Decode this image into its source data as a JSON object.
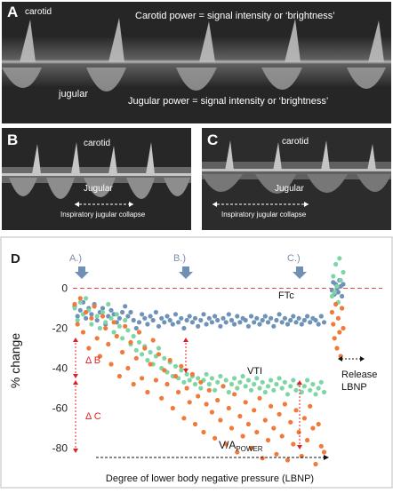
{
  "panel_a": {
    "letter": "A",
    "carotid": "carotid",
    "carotid_power": "Carotid power = signal intensity or ‘brightness’",
    "jugular": "jugular",
    "jugular_power": "Jugular power = signal intensity or ‘brightness’"
  },
  "panel_b": {
    "letter": "B",
    "carotid": "carotid",
    "jugular": "Jugular",
    "collapse": "Inspiratory jugular collapse"
  },
  "panel_c": {
    "letter": "C",
    "carotid": "carotid",
    "jugular": "Jugular",
    "collapse": "Inspiratory jugular collapse"
  },
  "chart_data": {
    "type": "scatter",
    "panel_letter": "D",
    "ylabel": "% change",
    "xlabel": "Degree of lower body negative pressure (LBNP)",
    "ylim": [
      -90,
      10
    ],
    "yticks": [
      0,
      -20,
      -40,
      -60,
      -80
    ],
    "markers": [
      "A.)",
      "B.)",
      "C.)"
    ],
    "series_labels": {
      "ftc": "FTc",
      "vti": "VTI",
      "va_main": "V/A",
      "va_sub": "POWER"
    },
    "delta_b": "Δ B",
    "delta_c": "Δ C",
    "release": [
      "Release",
      "LBNP"
    ],
    "colors": {
      "ftc": "#6f92b8",
      "vti": "#7ed6a5",
      "va": "#f07a3a",
      "zero": "#e84a4a",
      "annot": "#e02020",
      "marker": "#6f8fb5"
    },
    "series": [
      {
        "name": "FTc",
        "x": [
          1,
          2,
          3,
          4,
          5,
          6,
          7,
          8,
          9,
          10,
          11,
          12,
          13,
          14,
          15,
          16,
          17,
          18,
          19,
          20,
          21,
          22,
          23,
          24,
          25,
          26,
          27,
          28,
          29,
          30,
          31,
          32,
          33,
          34,
          35,
          36,
          37,
          38,
          39,
          40,
          41,
          42,
          43,
          44,
          45,
          46,
          47,
          48,
          49,
          50,
          51,
          52,
          53,
          54,
          55,
          56,
          57,
          58,
          59,
          60,
          61,
          62,
          63,
          64,
          65,
          66,
          67,
          68,
          69,
          70,
          71,
          72,
          73,
          74,
          75,
          76,
          77,
          78,
          79,
          80,
          81,
          82,
          83,
          84,
          85,
          86,
          87,
          88,
          89,
          90,
          91,
          92,
          93,
          94,
          95,
          96,
          97,
          98,
          99,
          100
        ],
        "values": [
          -9,
          -14,
          -11,
          -7,
          -15,
          -10,
          -13,
          -8,
          -16,
          -12,
          -10,
          -18,
          -14,
          -11,
          -13,
          -17,
          -15,
          -12,
          -9,
          -14,
          -12,
          -16,
          -20,
          -17,
          -13,
          -15,
          -18,
          -14,
          -16,
          -12,
          -19,
          -15,
          -17,
          -14,
          -16,
          -18,
          -13,
          -17,
          -15,
          -20,
          -16,
          -14,
          -17,
          -15,
          -19,
          -16,
          -13,
          -18,
          -15,
          -17,
          -14,
          -16,
          -19,
          -15,
          -17,
          -13,
          -16,
          -18,
          -14,
          -17,
          -15,
          -16,
          -19,
          -14,
          -17,
          -15,
          -18,
          -16,
          -14,
          -17,
          -15,
          -19,
          -16,
          -13,
          -17,
          -15,
          -18,
          -16,
          -14,
          -17,
          -15,
          -18,
          -16,
          -14,
          -17,
          -15,
          -16,
          -18,
          -14,
          -17,
          -1,
          3,
          -3,
          2,
          0,
          -2,
          4,
          1,
          -4,
          2
        ]
      },
      {
        "name": "VTI",
        "x": [
          1,
          2,
          3,
          4,
          5,
          6,
          7,
          8,
          9,
          10,
          11,
          12,
          13,
          14,
          15,
          16,
          17,
          18,
          19,
          20,
          21,
          22,
          23,
          24,
          25,
          26,
          27,
          28,
          29,
          30,
          31,
          32,
          33,
          34,
          35,
          36,
          37,
          38,
          39,
          40,
          41,
          42,
          43,
          44,
          45,
          46,
          47,
          48,
          49,
          50,
          51,
          52,
          53,
          54,
          55,
          56,
          57,
          58,
          59,
          60,
          61,
          62,
          63,
          64,
          65,
          66,
          67,
          68,
          69,
          70,
          71,
          72,
          73,
          74,
          75,
          76,
          77,
          78,
          79,
          80,
          81,
          82,
          83,
          84,
          85,
          86,
          87,
          88,
          89,
          90,
          91,
          92,
          93,
          94,
          95,
          96,
          97,
          98,
          99,
          100
        ],
        "values": [
          -10,
          -16,
          -7,
          -13,
          -5,
          -11,
          -18,
          -9,
          -14,
          -20,
          -12,
          -17,
          -8,
          -15,
          -22,
          -13,
          -19,
          -25,
          -16,
          -21,
          -28,
          -24,
          -31,
          -27,
          -33,
          -29,
          -36,
          -32,
          -38,
          -34,
          -30,
          -40,
          -35,
          -42,
          -37,
          -44,
          -39,
          -45,
          -41,
          -47,
          -43,
          -46,
          -44,
          -48,
          -45,
          -50,
          -46,
          -43,
          -48,
          -45,
          -51,
          -47,
          -44,
          -49,
          -46,
          -52,
          -48,
          -45,
          -50,
          -47,
          -44,
          -49,
          -46,
          -51,
          -48,
          -45,
          -50,
          -47,
          -52,
          -49,
          -46,
          -51,
          -48,
          -45,
          -50,
          -47,
          -53,
          -49,
          -46,
          -51,
          -48,
          -52,
          -49,
          -46,
          -51,
          -48,
          -53,
          -50,
          -47,
          -52,
          -4,
          6,
          -2,
          12,
          1,
          -7,
          15,
          4,
          -10,
          8
        ]
      },
      {
        "name": "V/A power",
        "x": [
          1,
          2,
          3,
          4,
          5,
          6,
          7,
          8,
          9,
          10,
          11,
          12,
          13,
          14,
          15,
          16,
          17,
          18,
          19,
          20,
          21,
          22,
          23,
          24,
          25,
          26,
          27,
          28,
          29,
          30,
          31,
          32,
          33,
          34,
          35,
          36,
          37,
          38,
          39,
          40,
          41,
          42,
          43,
          44,
          45,
          46,
          47,
          48,
          49,
          50,
          51,
          52,
          53,
          54,
          55,
          56,
          57,
          58,
          59,
          60,
          61,
          62,
          63,
          64,
          65,
          66,
          67,
          68,
          69,
          70,
          71,
          72,
          73,
          74,
          75,
          76,
          77,
          78,
          79,
          80,
          81,
          82,
          83,
          84,
          85,
          86,
          87,
          88,
          89,
          90,
          91,
          92,
          93,
          94,
          95,
          96,
          97,
          98,
          99,
          100
        ],
        "values": [
          -8,
          -18,
          -5,
          -22,
          -12,
          -30,
          -15,
          -9,
          -25,
          -34,
          -14,
          -20,
          -28,
          -38,
          -17,
          -24,
          -44,
          -32,
          -19,
          -40,
          -27,
          -48,
          -35,
          -22,
          -45,
          -30,
          -52,
          -38,
          -26,
          -46,
          -33,
          -55,
          -41,
          -48,
          -36,
          -60,
          -44,
          -52,
          -39,
          -65,
          -50,
          -57,
          -43,
          -68,
          -54,
          -47,
          -72,
          -58,
          -51,
          -62,
          -75,
          -56,
          -66,
          -49,
          -78,
          -60,
          -70,
          -53,
          -82,
          -64,
          -74,
          -57,
          -68,
          -80,
          -61,
          -72,
          -55,
          -85,
          -66,
          -76,
          -59,
          -70,
          -83,
          -63,
          -74,
          -58,
          -86,
          -67,
          -78,
          -61,
          -72,
          -84,
          -65,
          -76,
          -59,
          -70,
          -88,
          -68,
          -79,
          -82,
          -12,
          -18,
          -25,
          -8,
          -30,
          -15,
          -22,
          -34,
          -10,
          -20
        ]
      }
    ]
  }
}
